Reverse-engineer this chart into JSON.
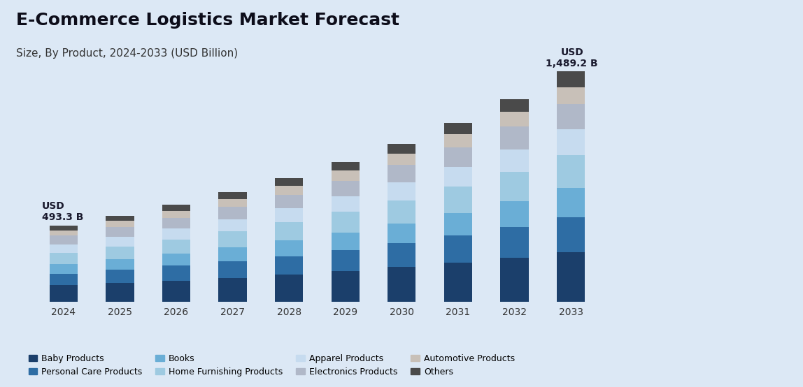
{
  "title": "E-Commerce Logistics Market Forecast",
  "subtitle": "Size, By Product, 2024-2033 (USD Billion)",
  "years": [
    2024,
    2025,
    2026,
    2027,
    2028,
    2029,
    2030,
    2031,
    2032,
    2033
  ],
  "categories": [
    "Baby Products",
    "Personal Care Products",
    "Books",
    "Home Furnishing Products",
    "Apparel Products",
    "Electronics Products",
    "Automotive Products",
    "Others"
  ],
  "colors": [
    "#1b3f6b",
    "#2e6da4",
    "#6aaed6",
    "#9ecae1",
    "#c6dbef",
    "#b0b8c8",
    "#c8c0b8",
    "#4a4a4a"
  ],
  "data": {
    "Baby Products": [
      108,
      122,
      138,
      155,
      175,
      198,
      224,
      253,
      286,
      323
    ],
    "Personal Care Products": [
      75,
      85,
      95,
      107,
      121,
      137,
      155,
      175,
      198,
      224
    ],
    "Books": [
      62,
      70,
      79,
      89,
      101,
      114,
      129,
      146,
      165,
      187
    ],
    "Home Furnishing Products": [
      72,
      81,
      92,
      104,
      117,
      132,
      149,
      169,
      191,
      216
    ],
    "Apparel Products": [
      55,
      62,
      70,
      79,
      89,
      101,
      114,
      129,
      146,
      165
    ],
    "Electronics Products": [
      55,
      62,
      70,
      79,
      89,
      100,
      113,
      128,
      145,
      164
    ],
    "Automotive Products": [
      35,
      40,
      45,
      51,
      58,
      65,
      74,
      84,
      95,
      107
    ],
    "Others": [
      31,
      35,
      40,
      45,
      51,
      57,
      64,
      73,
      83,
      103
    ]
  },
  "first_bar_label": "USD\n493.3 B",
  "last_bar_label": "USD\n1,489.2 B",
  "background_color": "#dce8f5",
  "bar_width": 0.5,
  "ylim": [
    0,
    1700
  ],
  "title_fontsize": 18,
  "subtitle_fontsize": 11,
  "legend_fontsize": 9
}
